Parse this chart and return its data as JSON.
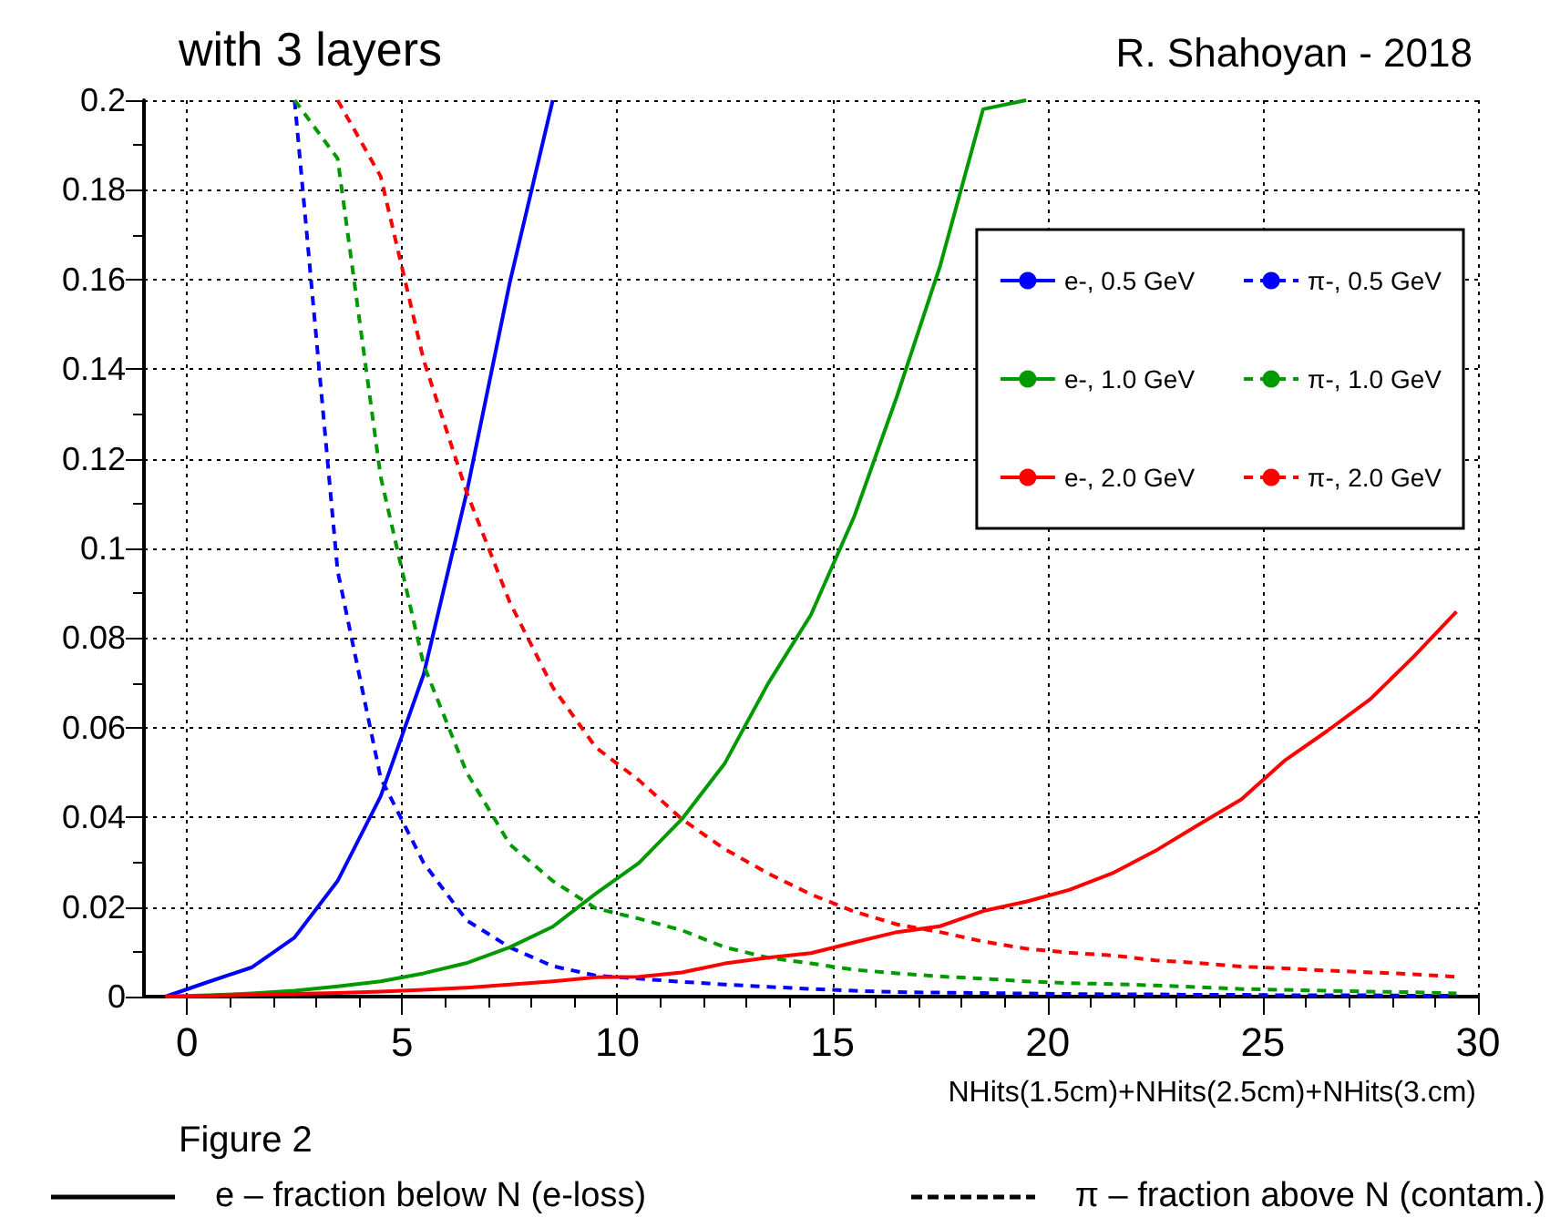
{
  "chart_data": {
    "type": "line",
    "title": "with 3 layers",
    "xlabel": "NHits(1.5cm)+NHits(2.5cm)+NHits(3.cm)",
    "annotations": [
      "R. Shahoyan - 2018",
      "Figure 2",
      "e – fraction below N (e-loss)",
      "π – fraction above N (contam.)"
    ],
    "x": [
      -0.5,
      0.5,
      1.5,
      2.5,
      3.5,
      4.5,
      5.5,
      6.5,
      7.5,
      8.5,
      9.5,
      10.5,
      11.5,
      12.5,
      13.5,
      14.5,
      15.5,
      16.5,
      17.5,
      18.5,
      19.5,
      20.5,
      21.5,
      22.5,
      23.5,
      24.5,
      25.5,
      26.5,
      27.5,
      28.5,
      29.5
    ],
    "series": [
      {
        "name": "e-, 0.5 GeV",
        "color": "#0000ff",
        "line_style": "solid",
        "values": [
          0,
          0.0033,
          0.0065,
          0.0132,
          0.0258,
          0.0447,
          0.0719,
          0.1125,
          0.1593,
          0.2,
          null,
          null,
          null,
          null,
          null,
          null,
          null,
          null,
          null,
          null,
          null,
          null,
          null,
          null,
          null,
          null,
          null,
          null,
          null,
          null,
          null
        ]
      },
      {
        "name": "π-, 0.5 GeV",
        "color": "#0000ff",
        "line_style": "dashed",
        "values": [
          null,
          null,
          null,
          0.2,
          0.095,
          0.0488,
          0.0298,
          0.017,
          0.011,
          0.0068,
          0.0047,
          0.004,
          0.0033,
          0.0027,
          0.0022,
          0.0017,
          0.0013,
          0.001,
          0.0009,
          0.0008,
          0.0007,
          0.0006,
          0.0005,
          0.0005,
          0.0004,
          0.0004,
          0.0003,
          0.0003,
          0.0003,
          0.0002,
          0.0002
        ]
      },
      {
        "name": "e-, 1.0 GeV",
        "color": "#009900",
        "line_style": "solid",
        "values": [
          0,
          0.0003,
          0.0007,
          0.0013,
          0.0023,
          0.0034,
          0.0052,
          0.0075,
          0.011,
          0.0156,
          0.023,
          0.0298,
          0.0396,
          0.0521,
          0.0698,
          0.0852,
          0.107,
          0.134,
          0.163,
          0.198,
          0.2,
          null,
          null,
          null,
          null,
          null,
          null,
          null,
          null,
          null,
          null
        ]
      },
      {
        "name": "π-, 1.0 GeV",
        "color": "#009900",
        "line_style": "dashed",
        "values": [
          null,
          null,
          null,
          0.2,
          0.187,
          0.116,
          0.074,
          0.05,
          0.034,
          0.0258,
          0.0197,
          0.0174,
          0.0148,
          0.011,
          0.0087,
          0.0074,
          0.006,
          0.0052,
          0.0045,
          0.004,
          0.0034,
          0.003,
          0.0028,
          0.0025,
          0.0021,
          0.0017,
          0.0015,
          0.0013,
          0.0011,
          0.001,
          0.0007
        ]
      },
      {
        "name": "e-, 2.0 GeV",
        "color": "#ff0000",
        "line_style": "solid",
        "values": [
          0,
          0.0002,
          0.0004,
          0.0006,
          0.0008,
          0.0011,
          0.0015,
          0.002,
          0.0027,
          0.0034,
          0.0043,
          0.0044,
          0.0054,
          0.0074,
          0.0087,
          0.0097,
          0.0121,
          0.0144,
          0.0157,
          0.0191,
          0.0212,
          0.0238,
          0.0275,
          0.0325,
          0.0383,
          0.044,
          0.0526,
          0.0593,
          0.0664,
          0.0758,
          0.0859
        ]
      },
      {
        "name": "π-, 2.0 GeV",
        "color": "#ff0000",
        "line_style": "dashed",
        "values": [
          null,
          null,
          null,
          null,
          0.2,
          0.183,
          0.142,
          0.1125,
          0.088,
          0.069,
          0.0556,
          0.0483,
          0.0396,
          0.0329,
          0.0275,
          0.0228,
          0.019,
          0.0161,
          0.0144,
          0.0123,
          0.0107,
          0.0098,
          0.0092,
          0.0081,
          0.0075,
          0.0067,
          0.0063,
          0.0058,
          0.0054,
          0.005,
          0.0044
        ]
      }
    ],
    "xlim": [
      -1,
      30
    ],
    "xticks": [
      0,
      5,
      10,
      15,
      20,
      25,
      30
    ],
    "ylim": [
      0,
      0.2
    ],
    "yticks": [
      0,
      0.02,
      0.04,
      0.06,
      0.08,
      0.1,
      0.12,
      0.14,
      0.16,
      0.18,
      0.2
    ],
    "grid": true,
    "legend": "top right",
    "marker": "none"
  }
}
